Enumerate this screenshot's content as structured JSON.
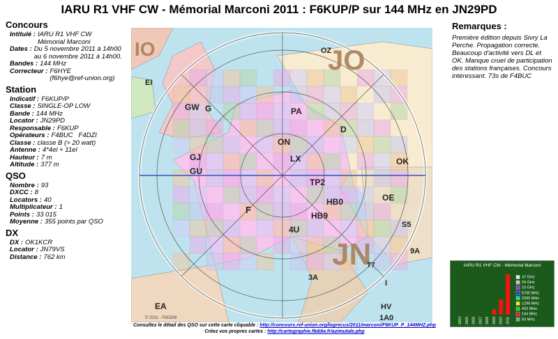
{
  "title": "IARU R1 VHF CW - Mémorial Marconi 2011 : F6KUP/P sur 144 MHz en JN29PD",
  "sections": [
    {
      "heading": "Concours",
      "rows": [
        {
          "label": "Intitulé :",
          "value": [
            "IARU R1 VHF CW",
            "Mémorial Marconi"
          ]
        },
        {
          "label": "Dates :",
          "value": [
            "Du 5 novembre 2011 à 14h00",
            "au 6 novembre 2011 à 14h00."
          ]
        },
        {
          "label": "Bandes :",
          "value": [
            "144 MHz"
          ]
        },
        {
          "label": "Correcteur :",
          "value": [
            "F6HYE",
            "(f6hye@ref-union.org)"
          ]
        }
      ]
    },
    {
      "heading": "Station",
      "rows": [
        {
          "label": "Indicatif :",
          "value": [
            "F6KUP/P"
          ]
        },
        {
          "label": "Classe :",
          "value": [
            "SINGLE-OP LOW"
          ]
        },
        {
          "label": "Bande :",
          "value": [
            "144 MHz"
          ]
        },
        {
          "label": "Locator :",
          "value": [
            "JN29PD"
          ]
        },
        {
          "label": "Responsable :",
          "value": [
            "F6KUP"
          ]
        },
        {
          "label": "Opérateurs :",
          "value": [
            "F4BUC   F4DZI"
          ]
        },
        {
          "label": "Classe :",
          "value": [
            "classe B (> 20 watt)"
          ]
        },
        {
          "label": "Antenne :",
          "value": [
            "4*4el + 11el"
          ]
        },
        {
          "label": "Hauteur :",
          "value": [
            "7 m"
          ]
        },
        {
          "label": "Altitude :",
          "value": [
            "377 m"
          ]
        }
      ]
    },
    {
      "heading": "QSO",
      "rows": [
        {
          "label": "Nombre :",
          "value": [
            93
          ]
        },
        {
          "label": "DXCC :",
          "value": [
            8
          ]
        },
        {
          "label": "Locators :",
          "value": [
            40
          ]
        },
        {
          "label": "Multiplicateur :",
          "value": [
            1
          ]
        },
        {
          "label": "Points :",
          "value": [
            "33 015"
          ]
        },
        {
          "label": "Moyenne :",
          "value": [
            "355 points par QSO"
          ]
        }
      ]
    },
    {
      "heading": "DX",
      "rows": [
        {
          "label": "DX :",
          "value": [
            "OK1KCR"
          ]
        },
        {
          "label": "Locator :",
          "value": [
            "JN79VS"
          ]
        },
        {
          "label": "Distance :",
          "value": [
            "762 km"
          ]
        }
      ]
    }
  ],
  "remarks": {
    "heading": "Remarques :",
    "text": "Première édition depuis Sivry La Perche. Propagation correcte. Beaucoup d'activité vers DL et OK. Manque cruel de participation des stations françaises. Concours intéressant. 73s de F4BUC"
  },
  "map": {
    "labels": [
      "JO",
      "JN",
      "IO",
      "OZ",
      "EI",
      "GW",
      "G",
      "PA",
      "ON",
      "LX",
      "D",
      "OK",
      "GJ",
      "GU",
      "F",
      "TP2",
      "HB0",
      "HB9",
      "4U",
      "OE",
      "S5",
      "9A",
      "T7",
      "3A",
      "I",
      "EA",
      "HV",
      "1A0"
    ],
    "credit": "© 2011 - F6DDW"
  },
  "footer": {
    "line1": "Consultez le détail des QSO sur cette carte cliquable : ",
    "link1": "http://concours.ref-union.org/logrecus/2011/marconi/F6KUP_P_144MHZ.php",
    "line2": "Créez vos propres cartes : ",
    "link2": "http://cartographie.f6ddw.fr/azimutale.php"
  },
  "chart_data": {
    "type": "bar",
    "title": "IARU R1 VHF CW - Mémorial Marconi",
    "categories": [
      "2004",
      "2005",
      "2006",
      "2007",
      "2008",
      "2009",
      "2010",
      "2011"
    ],
    "series": [
      {
        "name": "47 GHz",
        "color": "#e8e8e8",
        "values": [
          0,
          0,
          0,
          0,
          0,
          0,
          0,
          0
        ]
      },
      {
        "name": "24 GHz",
        "color": "#c8c8c8",
        "values": [
          0,
          0,
          0,
          0,
          0,
          0,
          0,
          0
        ]
      },
      {
        "name": "10 GHz",
        "color": "#b020e0",
        "values": [
          0,
          0,
          0,
          0,
          0,
          0,
          0,
          0
        ]
      },
      {
        "name": "5760 MHz",
        "color": "#2030ff",
        "values": [
          0,
          0,
          0,
          0,
          0,
          0,
          0,
          0
        ]
      },
      {
        "name": "2300 MHz",
        "color": "#00e0a0",
        "values": [
          0,
          0,
          0,
          0,
          0,
          0,
          0,
          0
        ]
      },
      {
        "name": "1296 MHz",
        "color": "#f0f000",
        "values": [
          0,
          0,
          0,
          0,
          0,
          0,
          0,
          0
        ]
      },
      {
        "name": "432 MHz",
        "color": "#30c030",
        "values": [
          0,
          0,
          0,
          0,
          0,
          0,
          0,
          0
        ]
      },
      {
        "name": "144 MHz",
        "color": "#ff1010",
        "values": [
          0,
          0,
          0,
          0,
          0,
          12,
          35,
          93
        ]
      },
      {
        "name": "50 MHz",
        "color": "#909090",
        "values": [
          0,
          0,
          0,
          0,
          0,
          0,
          0,
          0
        ]
      }
    ]
  }
}
